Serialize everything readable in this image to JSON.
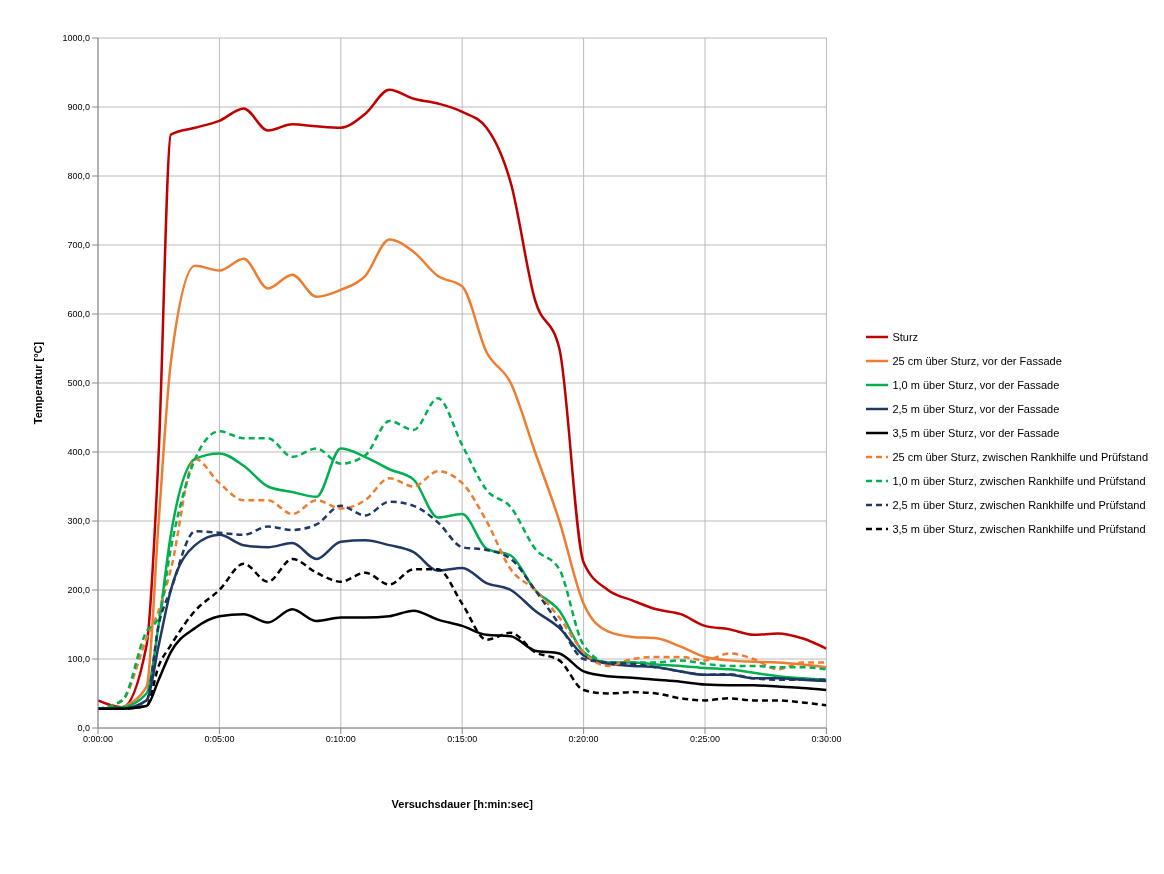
{
  "chart_data": {
    "type": "line",
    "xlabel": "Versuchsdauer [h:min:sec]",
    "ylabel": "Temperatur [°C]",
    "x": [
      0,
      1,
      2,
      2.5,
      3,
      4,
      5,
      6,
      7,
      8,
      9,
      10,
      11,
      12,
      13,
      14,
      15,
      16,
      17,
      18,
      19,
      20,
      21,
      22,
      23,
      24,
      25,
      26,
      27,
      28,
      29,
      30
    ],
    "series": [
      {
        "name": "Sturz",
        "color": "#c00000",
        "line_style": "solid",
        "values": [
          40,
          30,
          120,
          400,
          860,
          870,
          880,
          898,
          866,
          875,
          872,
          870,
          890,
          925,
          912,
          905,
          893,
          870,
          790,
          620,
          550,
          240,
          200,
          185,
          172,
          165,
          148,
          143,
          135,
          137,
          130,
          115
        ]
      },
      {
        "name": "25 cm über Sturz, vor der Fassade",
        "color": "#ed7d31",
        "line_style": "solid",
        "values": [
          null,
          30,
          60,
          300,
          530,
          670,
          663,
          680,
          637,
          657,
          625,
          635,
          655,
          708,
          690,
          655,
          640,
          545,
          500,
          400,
          300,
          180,
          140,
          132,
          130,
          118,
          103,
          98,
          96,
          95,
          92,
          88
        ]
      },
      {
        "name": "1,0 m über Sturz, vor der Fassade",
        "color": "#00b050",
        "line_style": "solid",
        "values": [
          28,
          30,
          50,
          150,
          280,
          390,
          398,
          380,
          350,
          342,
          335,
          405,
          393,
          375,
          360,
          305,
          310,
          260,
          250,
          200,
          170,
          110,
          95,
          95,
          92,
          90,
          87,
          85,
          80,
          75,
          72,
          70
        ]
      },
      {
        "name": "2,5 m über Sturz, vor der Fassade",
        "color": "#1f3864",
        "line_style": "solid",
        "values": [
          28,
          28,
          40,
          120,
          200,
          265,
          280,
          265,
          262,
          268,
          245,
          270,
          272,
          265,
          255,
          228,
          232,
          210,
          200,
          170,
          145,
          105,
          93,
          90,
          88,
          82,
          77,
          77,
          72,
          72,
          70,
          68
        ]
      },
      {
        "name": "3,5 m über Sturz, vor der Fassade",
        "color": "#000000",
        "line_style": "solid",
        "values": [
          28,
          28,
          32,
          70,
          110,
          145,
          162,
          165,
          153,
          172,
          155,
          160,
          160,
          162,
          170,
          157,
          148,
          135,
          133,
          112,
          108,
          82,
          75,
          73,
          70,
          67,
          63,
          62,
          62,
          60,
          58,
          55
        ]
      },
      {
        "name": "25 cm über Sturz, zwischen Rankhilfe und Prüfstand",
        "color": "#ed7d31",
        "line_style": "dashed",
        "values": [
          28,
          40,
          130,
          170,
          230,
          390,
          355,
          330,
          330,
          310,
          330,
          318,
          330,
          362,
          350,
          372,
          355,
          300,
          230,
          200,
          160,
          110,
          90,
          100,
          103,
          103,
          98,
          108,
          100,
          85,
          95,
          95
        ]
      },
      {
        "name": "1,0 m über Sturz, zwischen Rankhilfe und Prüfstand",
        "color": "#00b050",
        "line_style": "dashed",
        "values": [
          28,
          40,
          140,
          160,
          260,
          390,
          430,
          420,
          420,
          393,
          405,
          383,
          395,
          445,
          432,
          478,
          410,
          345,
          320,
          260,
          230,
          120,
          95,
          95,
          95,
          98,
          93,
          90,
          90,
          88,
          88,
          85
        ]
      },
      {
        "name": "2,5 m über Sturz, zwischen Rankhilfe und Prüfstand",
        "color": "#1f3864",
        "line_style": "dashed",
        "values": [
          28,
          28,
          40,
          150,
          200,
          285,
          283,
          280,
          292,
          287,
          295,
          322,
          308,
          328,
          322,
          298,
          262,
          258,
          245,
          200,
          150,
          100,
          95,
          93,
          88,
          82,
          77,
          78,
          72,
          70,
          70,
          70
        ]
      },
      {
        "name": "3,5 m über Sturz, zwischen Rankhilfe und Prüfstand",
        "color": "#000000",
        "line_style": "dashed",
        "values": [
          28,
          28,
          32,
          90,
          120,
          170,
          200,
          238,
          212,
          245,
          225,
          212,
          225,
          208,
          230,
          230,
          180,
          128,
          138,
          110,
          98,
          55,
          50,
          52,
          50,
          43,
          40,
          43,
          40,
          40,
          37,
          33
        ]
      }
    ],
    "xlim": [
      0,
      30
    ],
    "xticks": [
      {
        "value": 0,
        "label": "0:00:00"
      },
      {
        "value": 5,
        "label": "0:05:00"
      },
      {
        "value": 10,
        "label": "0:10:00"
      },
      {
        "value": 15,
        "label": "0:15:00"
      },
      {
        "value": 20,
        "label": "0:20:00"
      },
      {
        "value": 25,
        "label": "0:25:00"
      },
      {
        "value": 30,
        "label": "0:30:00"
      }
    ],
    "ylim": [
      0,
      1000
    ],
    "yticks": [
      {
        "value": 0,
        "label": "0,0"
      },
      {
        "value": 100,
        "label": "100,0"
      },
      {
        "value": 200,
        "label": "200,0"
      },
      {
        "value": 300,
        "label": "300,0"
      },
      {
        "value": 400,
        "label": "400,0"
      },
      {
        "value": 500,
        "label": "500,0"
      },
      {
        "value": 600,
        "label": "600,0"
      },
      {
        "value": 700,
        "label": "700,0"
      },
      {
        "value": 800,
        "label": "800,0"
      },
      {
        "value": 900,
        "label": "900,0"
      },
      {
        "value": 1000,
        "label": "1000,0"
      }
    ],
    "grid": true,
    "legend": "right",
    "marker": "none"
  }
}
